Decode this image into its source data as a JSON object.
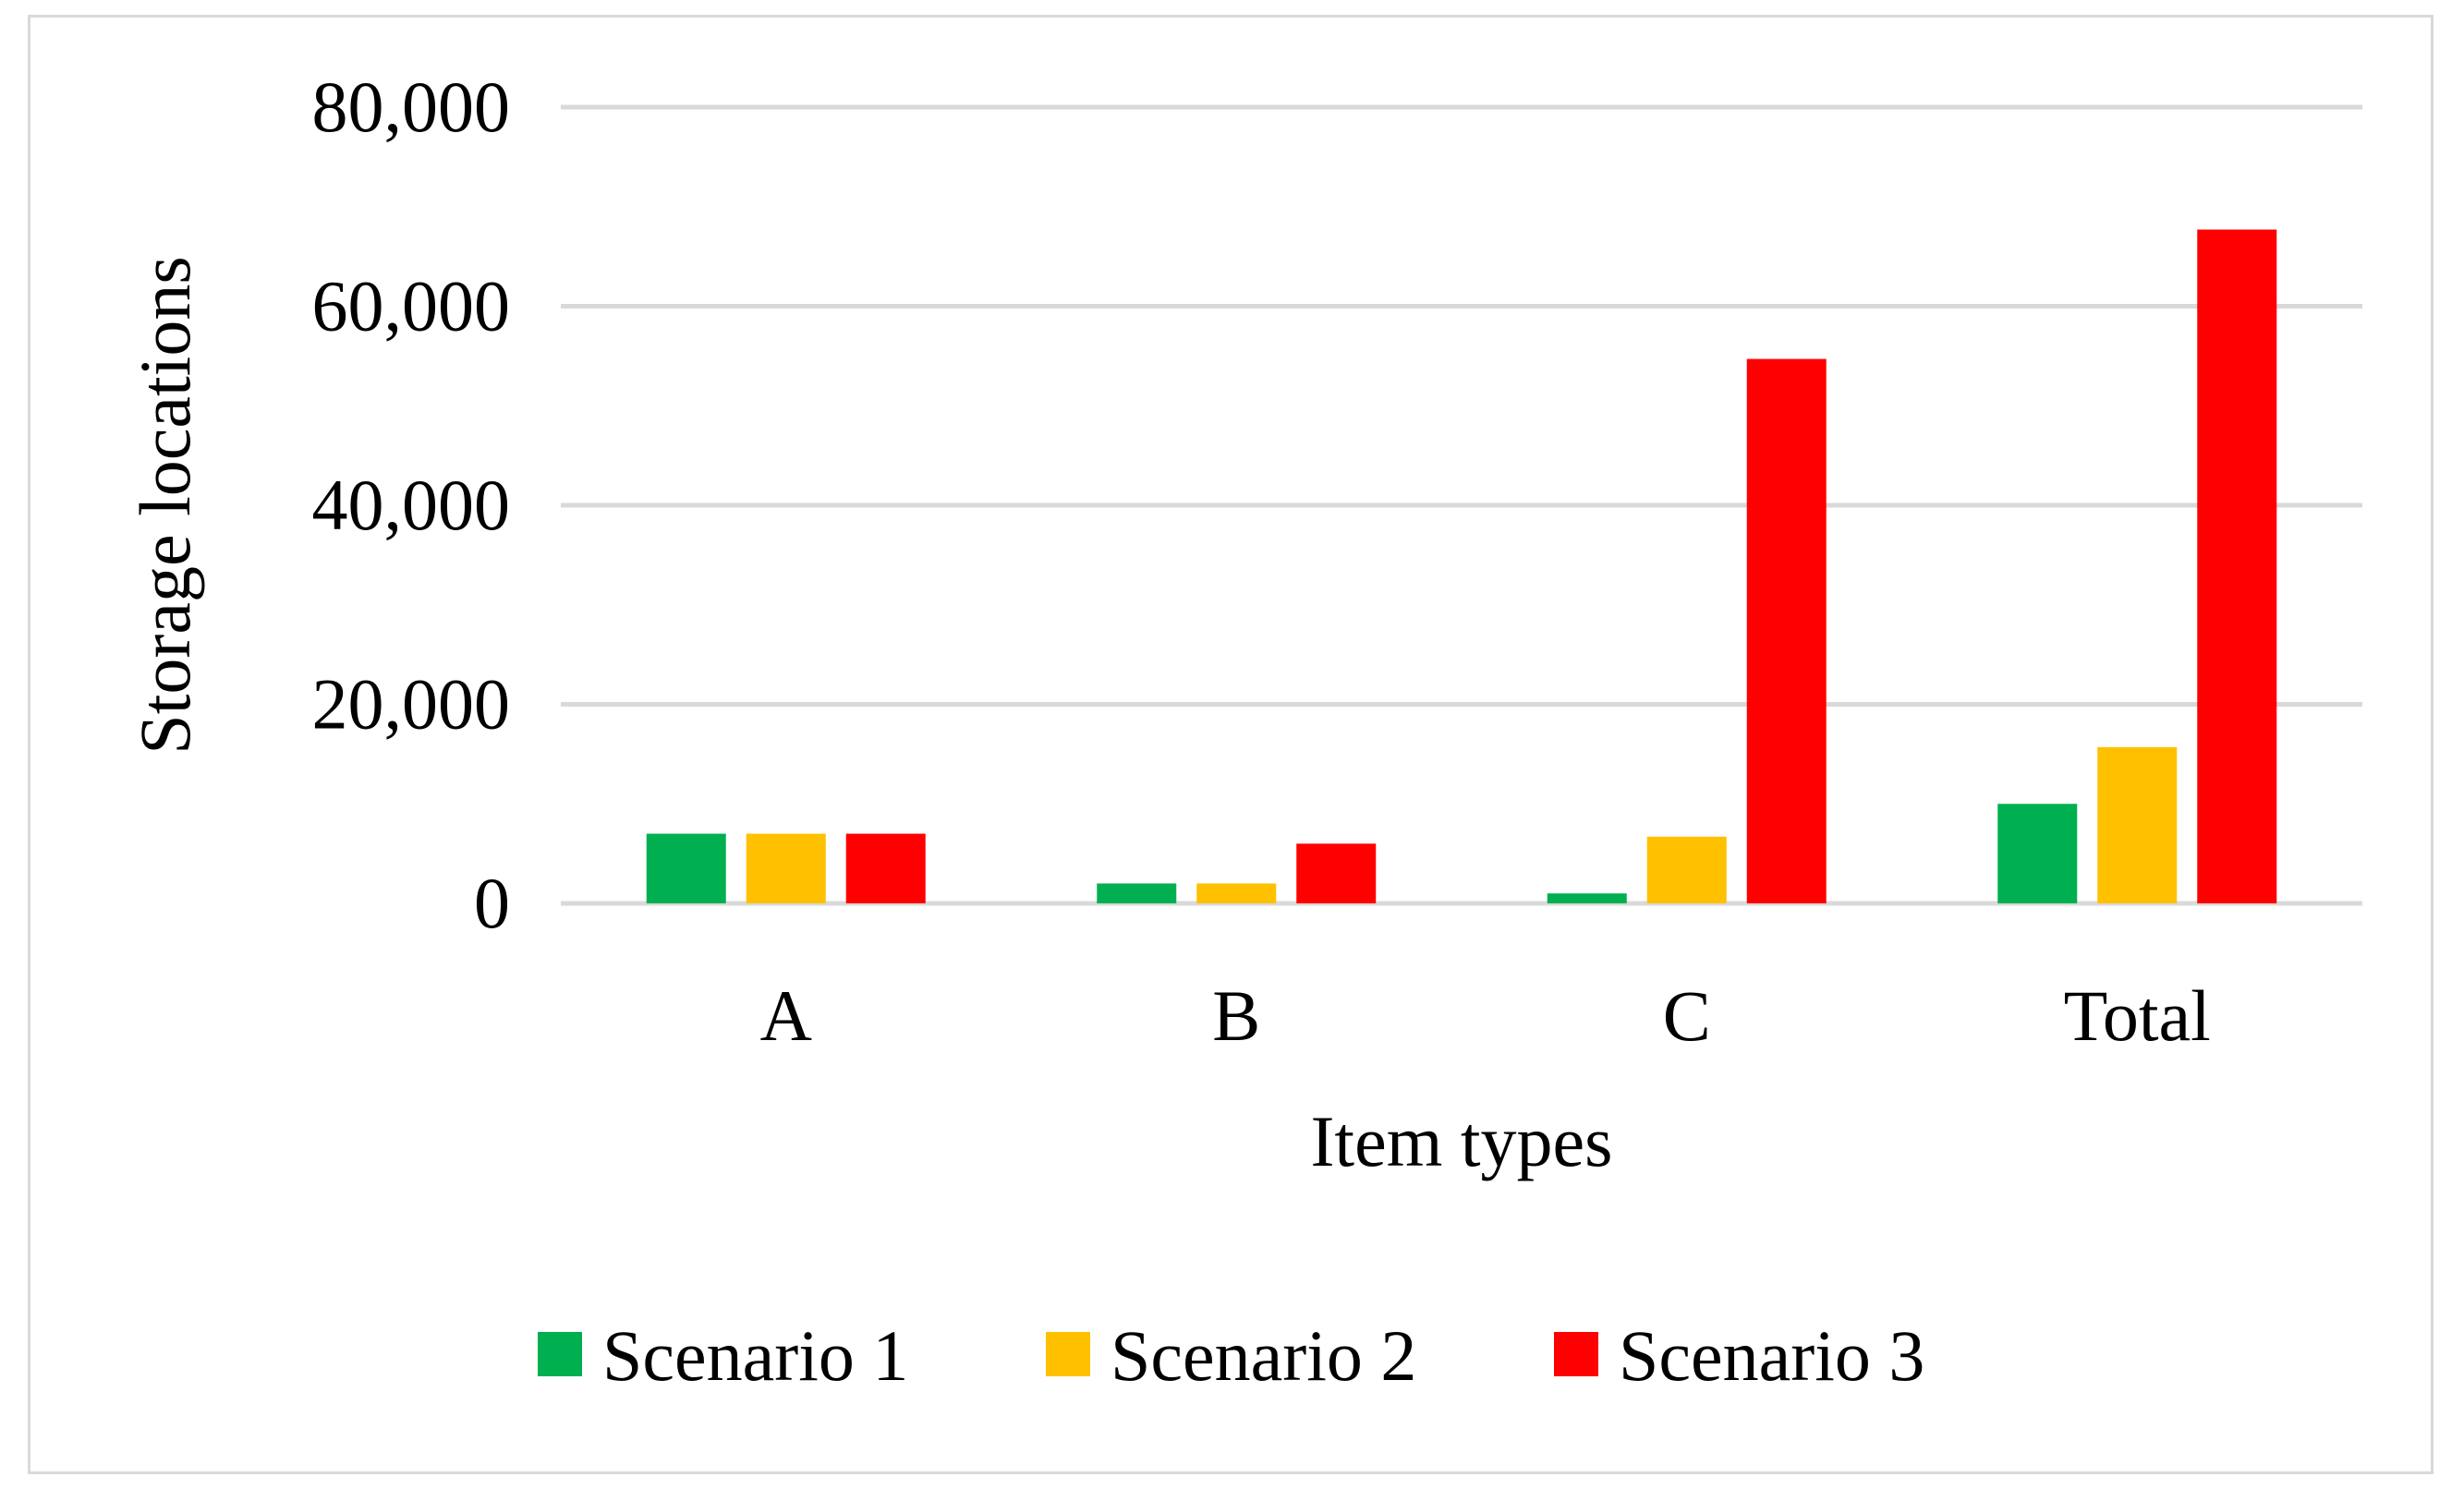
{
  "chart_data": {
    "type": "bar",
    "title": "",
    "xlabel": "Item types",
    "ylabel": "Storage locations",
    "categories": [
      "A",
      "B",
      "C",
      "Total"
    ],
    "ylim": [
      0,
      80000
    ],
    "yticks": [
      0,
      20000,
      40000,
      60000,
      80000
    ],
    "ytick_labels": [
      "0",
      "20,000",
      "40,000",
      "60,000",
      "80,000"
    ],
    "grid": true,
    "legend": "bottom",
    "series": [
      {
        "name": "Scenario 1",
        "color": "#00b050",
        "values": [
          7000,
          2000,
          1000,
          10000
        ]
      },
      {
        "name": "Scenario 2",
        "color": "#ffc000",
        "values": [
          7000,
          2000,
          6700,
          15700
        ]
      },
      {
        "name": "Scenario 3",
        "color": "#ff0000",
        "values": [
          7000,
          6000,
          54700,
          67700
        ]
      }
    ]
  }
}
